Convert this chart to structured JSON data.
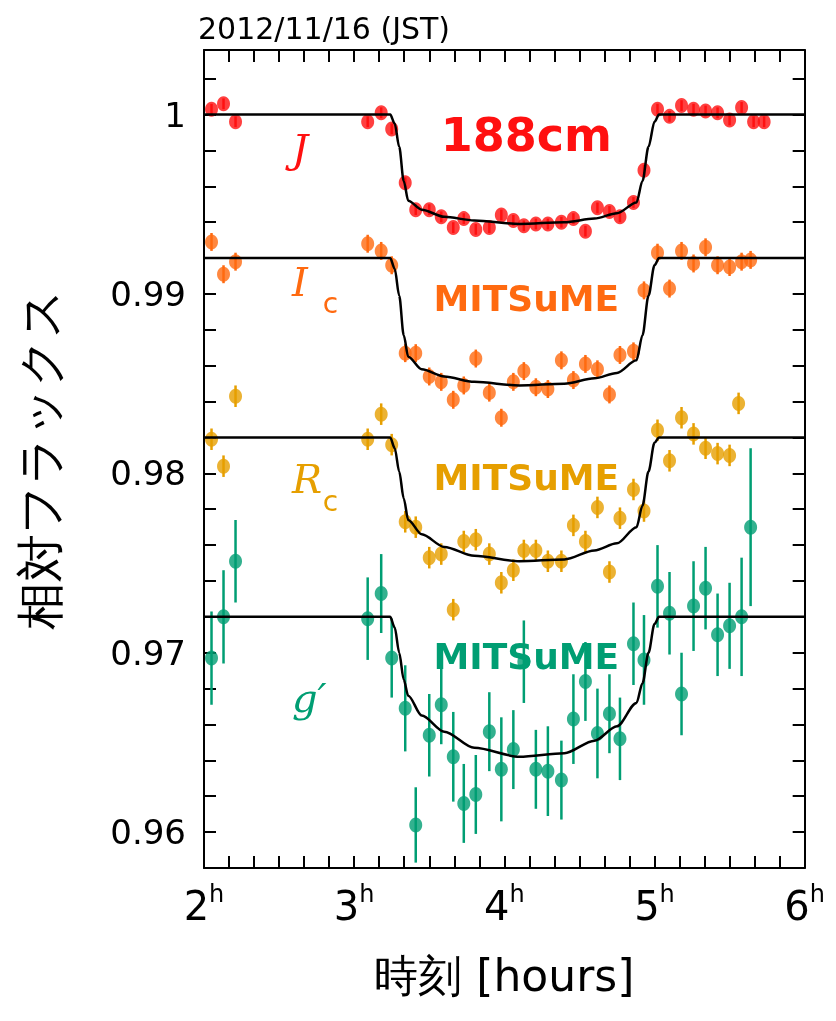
{
  "chart_data": {
    "type": "scatter",
    "title": "2012/11/16 (JST)",
    "xlabel": "時刻 [hours]",
    "ylabel": "相対フラックス",
    "xlim": [
      2,
      6
    ],
    "ylim": [
      0.958,
      1.0036
    ],
    "marker": "circle",
    "grid": false,
    "xticks": [
      {
        "value": 2,
        "label": "2$^{h}$"
      },
      {
        "value": 2.1667,
        "label": null
      },
      {
        "value": 2.3333,
        "label": null
      },
      {
        "value": 2.5,
        "label": null
      },
      {
        "value": 2.6667,
        "label": null
      },
      {
        "value": 2.8333,
        "label": null
      },
      {
        "value": 3,
        "label": "3$^{h}$"
      },
      {
        "value": 3.1667,
        "label": null
      },
      {
        "value": 3.3333,
        "label": null
      },
      {
        "value": 3.5,
        "label": null
      },
      {
        "value": 3.6667,
        "label": null
      },
      {
        "value": 3.8333,
        "label": null
      },
      {
        "value": 4,
        "label": "4$^{h}$"
      },
      {
        "value": 4.1667,
        "label": null
      },
      {
        "value": 4.3333,
        "label": null
      },
      {
        "value": 4.5,
        "label": null
      },
      {
        "value": 4.6667,
        "label": null
      },
      {
        "value": 4.8333,
        "label": null
      },
      {
        "value": 5,
        "label": "5$^{h}$"
      },
      {
        "value": 5.1667,
        "label": null
      },
      {
        "value": 5.3333,
        "label": null
      },
      {
        "value": 5.5,
        "label": null
      },
      {
        "value": 5.6667,
        "label": null
      },
      {
        "value": 5.8333,
        "label": null
      },
      {
        "value": 6,
        "label": "6$^{h}$"
      }
    ],
    "yticks": [
      {
        "value": 0.958,
        "label": null
      },
      0.96,
      {
        "value": 0.962,
        "label": null
      },
      {
        "value": 0.964,
        "label": null
      },
      {
        "value": 0.966,
        "label": null
      },
      {
        "value": 0.968,
        "label": null
      },
      0.97,
      {
        "value": 0.972,
        "label": null
      },
      {
        "value": 0.974,
        "label": null
      },
      {
        "value": 0.976,
        "label": null
      },
      {
        "value": 0.978,
        "label": null
      },
      0.98,
      {
        "value": 0.982,
        "label": null
      },
      {
        "value": 0.984,
        "label": null
      },
      {
        "value": 0.986,
        "label": null
      },
      {
        "value": 0.988,
        "label": null
      },
      0.99,
      {
        "value": 0.992,
        "label": null
      },
      {
        "value": 0.994,
        "label": null
      },
      {
        "value": 0.996,
        "label": null
      },
      {
        "value": 0.998,
        "label": null
      },
      1,
      {
        "value": 1.002,
        "label": null
      }
    ],
    "annotations": [
      "188cm",
      "MITSuME",
      "MITSuME",
      "MITSuME"
    ],
    "series": [
      {
        "name": "J",
        "color": "#ff1010",
        "x": [
          2.05,
          2.13,
          2.21,
          3.09,
          3.18,
          3.25,
          3.34,
          3.41,
          3.5,
          3.58,
          3.66,
          3.73,
          3.81,
          3.9,
          3.98,
          4.06,
          4.13,
          4.21,
          4.29,
          4.38,
          4.46,
          4.54,
          4.62,
          4.7,
          4.77,
          4.86,
          4.93,
          5.02,
          5.1,
          5.18,
          5.26,
          5.34,
          5.42,
          5.5,
          5.58,
          5.66,
          5.73
        ],
        "values": [
          1.0003,
          1.0006,
          0.9996,
          0.9996,
          1.0001,
          0.9992,
          0.9962,
          0.9947,
          0.9947,
          0.9943,
          0.9937,
          0.9942,
          0.9936,
          0.9937,
          0.9944,
          0.9941,
          0.9938,
          0.9939,
          0.9939,
          0.994,
          0.9942,
          0.9935,
          0.9948,
          0.9946,
          0.9943,
          0.9951,
          0.9969,
          1.0003,
          0.9999,
          1.0005,
          1.0003,
          1.0002,
          1.0001,
          0.9997,
          1.0004,
          0.9996,
          0.9996
        ],
        "errors": [
          0.0003,
          0.0003,
          0.0003,
          0.0003,
          0.0003,
          0.0003,
          0.0003,
          0.0003,
          0.0003,
          0.0003,
          0.0003,
          0.0003,
          0.0003,
          0.0003,
          0.0003,
          0.0003,
          0.0003,
          0.0003,
          0.0003,
          0.0003,
          0.0003,
          0.0003,
          0.0003,
          0.0003,
          0.0003,
          0.0003,
          0.0003,
          0.0003,
          0.0003,
          0.0003,
          0.0003,
          0.0003,
          0.0003,
          0.0003,
          0.0003,
          0.0003,
          0.0003
        ]
      },
      {
        "type": "line",
        "marker": "none",
        "color": "#000000",
        "x": [
          2,
          3.24,
          3.27,
          3.3,
          3.33,
          3.36,
          3.45,
          3.6,
          3.8,
          4.1,
          4.4,
          4.6,
          4.75,
          4.88,
          4.92,
          4.96,
          5,
          5.03,
          6
        ],
        "values": [
          1,
          1,
          0.9995,
          0.9982,
          0.9963,
          0.9952,
          0.9947,
          0.9943,
          0.9941,
          0.9939,
          0.994,
          0.9942,
          0.9945,
          0.9951,
          0.9963,
          0.9982,
          0.9996,
          1,
          1
        ]
      },
      {
        "name": "I$_{c}$",
        "color": "#ff6a10",
        "x": [
          2.05,
          2.13,
          2.21,
          3.09,
          3.18,
          3.25,
          3.34,
          3.41,
          3.5,
          3.58,
          3.66,
          3.73,
          3.81,
          3.9,
          3.98,
          4.06,
          4.13,
          4.21,
          4.29,
          4.38,
          4.46,
          4.54,
          4.62,
          4.7,
          4.77,
          4.86,
          4.93,
          5.02,
          5.1,
          5.18,
          5.26,
          5.34,
          5.42,
          5.5,
          5.58,
          5.64
        ],
        "values": [
          0.9929,
          0.9911,
          0.9918,
          0.9928,
          0.9924,
          0.9916,
          0.9867,
          0.9867,
          0.9854,
          0.9851,
          0.9841,
          0.9849,
          0.9864,
          0.9845,
          0.9831,
          0.9851,
          0.9857,
          0.9848,
          0.9847,
          0.9863,
          0.9852,
          0.9861,
          0.9858,
          0.9844,
          0.9866,
          0.9868,
          0.9902,
          0.9923,
          0.9903,
          0.9924,
          0.9917,
          0.9926,
          0.9916,
          0.9915,
          0.9918,
          0.9919
        ],
        "errors": [
          0.0005,
          0.0005,
          0.0005,
          0.0005,
          0.0005,
          0.0005,
          0.0005,
          0.0005,
          0.0005,
          0.0005,
          0.0005,
          0.0005,
          0.0005,
          0.0005,
          0.0005,
          0.0005,
          0.0005,
          0.0005,
          0.0005,
          0.0005,
          0.0005,
          0.0005,
          0.0005,
          0.0005,
          0.0005,
          0.0005,
          0.0005,
          0.0005,
          0.0005,
          0.0005,
          0.0005,
          0.0005,
          0.0005,
          0.0005,
          0.0005,
          0.0005
        ]
      },
      {
        "type": "line",
        "marker": "none",
        "color": "#000000",
        "x": [
          2,
          3.24,
          3.27,
          3.3,
          3.33,
          3.36,
          3.45,
          3.6,
          3.8,
          4.1,
          4.4,
          4.6,
          4.75,
          4.88,
          4.92,
          4.96,
          5,
          5.03,
          6
        ],
        "values": [
          0.992,
          0.992,
          0.9914,
          0.9899,
          0.9877,
          0.9865,
          0.9858,
          0.9854,
          0.9851,
          0.9849,
          0.985,
          0.9853,
          0.9856,
          0.9863,
          0.9877,
          0.9899,
          0.9916,
          0.992,
          0.992
        ]
      },
      {
        "name": "R$_{c}$",
        "color": "#e69f00",
        "x": [
          2.05,
          2.13,
          2.21,
          3.09,
          3.18,
          3.25,
          3.34,
          3.41,
          3.5,
          3.58,
          3.66,
          3.73,
          3.81,
          3.9,
          3.98,
          4.06,
          4.13,
          4.21,
          4.29,
          4.38,
          4.46,
          4.54,
          4.62,
          4.7,
          4.77,
          4.86,
          4.93,
          5.02,
          5.1,
          5.18,
          5.26,
          5.34,
          5.42,
          5.5,
          5.56
        ],
        "values": [
          0.9819,
          0.9804,
          0.9843,
          0.9819,
          0.9833,
          0.9816,
          0.9773,
          0.977,
          0.9753,
          0.9755,
          0.9724,
          0.9762,
          0.9763,
          0.9755,
          0.9739,
          0.9746,
          0.9757,
          0.9757,
          0.9751,
          0.9751,
          0.9771,
          0.9762,
          0.9781,
          0.9745,
          0.9775,
          0.9791,
          0.9779,
          0.9824,
          0.9807,
          0.9831,
          0.9822,
          0.9814,
          0.9811,
          0.981,
          0.9839
        ],
        "errors": [
          0.0006,
          0.0006,
          0.0006,
          0.0006,
          0.0006,
          0.0006,
          0.0006,
          0.0006,
          0.0006,
          0.0006,
          0.0006,
          0.0006,
          0.0006,
          0.0006,
          0.0006,
          0.0006,
          0.0006,
          0.0006,
          0.0006,
          0.0006,
          0.0006,
          0.0006,
          0.0006,
          0.0006,
          0.0006,
          0.0006,
          0.0006,
          0.0006,
          0.0006,
          0.0006,
          0.0006,
          0.0006,
          0.0006,
          0.0006,
          0.0006
        ]
      },
      {
        "type": "line",
        "marker": "none",
        "color": "#000000",
        "x": [
          2,
          3.24,
          3.27,
          3.3,
          3.33,
          3.36,
          3.45,
          3.6,
          3.8,
          4.1,
          4.4,
          4.6,
          4.75,
          4.88,
          4.92,
          4.96,
          5,
          5.03,
          6
        ],
        "values": [
          0.982,
          0.982,
          0.9814,
          0.9801,
          0.9786,
          0.9774,
          0.9766,
          0.9759,
          0.9754,
          0.9751,
          0.9752,
          0.9757,
          0.9761,
          0.977,
          0.9782,
          0.9801,
          0.9817,
          0.982,
          0.982
        ]
      },
      {
        "name": "g′",
        "color": "#009e73",
        "x": [
          2.05,
          2.13,
          2.21,
          3.09,
          3.18,
          3.25,
          3.34,
          3.41,
          3.5,
          3.58,
          3.66,
          3.73,
          3.81,
          3.9,
          3.98,
          4.06,
          4.13,
          4.21,
          4.29,
          4.38,
          4.46,
          4.54,
          4.62,
          4.7,
          4.77,
          4.86,
          4.93,
          5.02,
          5.1,
          5.18,
          5.26,
          5.34,
          5.42,
          5.5,
          5.58,
          5.64
        ],
        "values": [
          0.9697,
          0.972,
          0.9751,
          0.9719,
          0.9733,
          0.9697,
          0.9669,
          0.9604,
          0.9654,
          0.9671,
          0.9642,
          0.9616,
          0.9621,
          0.9656,
          0.9635,
          0.9646,
          0.9695,
          0.9635,
          0.9634,
          0.9629,
          0.9663,
          0.9684,
          0.9655,
          0.9666,
          0.9652,
          0.9705,
          0.9696,
          0.9737,
          0.9722,
          0.9677,
          0.9726,
          0.9736,
          0.971,
          0.9715,
          0.972,
          0.977
        ],
        "errors": [
          0.0026,
          0.0026,
          0.0023,
          0.0023,
          0.0022,
          0.0022,
          0.0024,
          0.0021,
          0.0023,
          0.0022,
          0.0025,
          0.0022,
          0.0022,
          0.0022,
          0.0029,
          0.0022,
          0.0023,
          0.0022,
          0.0025,
          0.0022,
          0.0025,
          0.0022,
          0.0025,
          0.0022,
          0.0023,
          0.0023,
          0.0025,
          0.0023,
          0.0023,
          0.0023,
          0.0025,
          0.0023,
          0.0023,
          0.0024,
          0.0033,
          0.0044
        ]
      },
      {
        "type": "line",
        "marker": "none",
        "color": "#000000",
        "x": [
          2,
          3.24,
          3.27,
          3.3,
          3.33,
          3.36,
          3.45,
          3.6,
          3.8,
          4.1,
          4.4,
          4.6,
          4.75,
          4.88,
          4.92,
          4.96,
          5,
          5.03,
          6
        ],
        "values": [
          0.972,
          0.972,
          0.9714,
          0.97,
          0.9685,
          0.9676,
          0.9665,
          0.9656,
          0.9647,
          0.9642,
          0.9644,
          0.9651,
          0.9659,
          0.9672,
          0.9683,
          0.97,
          0.9716,
          0.972,
          0.972
        ]
      }
    ]
  }
}
